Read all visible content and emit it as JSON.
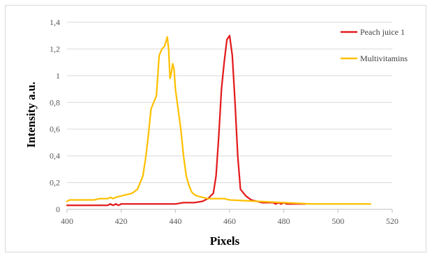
{
  "chart_data": {
    "type": "line",
    "title": "",
    "xlabel": "Pixels",
    "ylabel": "Intensity a.u.",
    "xlim": [
      400,
      520
    ],
    "ylim": [
      0,
      1.4
    ],
    "x_ticks": [
      400,
      420,
      440,
      460,
      480,
      500,
      520
    ],
    "x_tick_labels": [
      "400",
      "420",
      "440",
      "460",
      "480",
      "500",
      "520"
    ],
    "y_ticks": [
      0,
      0.2,
      0.4,
      0.6,
      0.8,
      1.0,
      1.2,
      1.4
    ],
    "y_tick_labels": [
      "0",
      "0,2",
      "0,4",
      "0,6",
      "0,8",
      "1",
      "1,2",
      "1,4"
    ],
    "grid": "horizontal",
    "legend_position": "top-right",
    "series": [
      {
        "name": "Peach juice 1",
        "color": "#e31a1c",
        "x": [
          400,
          410,
          415,
          416,
          417,
          418,
          419,
          420,
          430,
          440,
          443,
          447,
          450,
          452,
          454,
          455,
          456,
          457,
          458,
          459,
          460,
          461,
          462,
          463,
          464,
          466,
          468,
          470,
          472,
          476,
          477,
          478,
          479,
          480,
          481,
          482,
          485,
          488
        ],
        "y": [
          0.03,
          0.03,
          0.03,
          0.04,
          0.03,
          0.04,
          0.03,
          0.04,
          0.04,
          0.04,
          0.05,
          0.05,
          0.06,
          0.08,
          0.12,
          0.25,
          0.55,
          0.9,
          1.1,
          1.27,
          1.3,
          1.15,
          0.8,
          0.4,
          0.15,
          0.1,
          0.07,
          0.06,
          0.05,
          0.05,
          0.04,
          0.05,
          0.04,
          0.05,
          0.04,
          0.04,
          0.04,
          0.04
        ]
      },
      {
        "name": "Multivitamins",
        "color": "#ffc000",
        "x": [
          400,
          401,
          410,
          412,
          415,
          416,
          417,
          418,
          420,
          422,
          424,
          426,
          427,
          428,
          429,
          430,
          431,
          432,
          433,
          434,
          435,
          436,
          437,
          437.5,
          438,
          438.5,
          439,
          439.5,
          440,
          441,
          442,
          443,
          444,
          445,
          446,
          447,
          448,
          450,
          452,
          455,
          458,
          460,
          470,
          480,
          490,
          500,
          512
        ],
        "y": [
          0.06,
          0.07,
          0.07,
          0.08,
          0.08,
          0.09,
          0.08,
          0.09,
          0.1,
          0.11,
          0.12,
          0.15,
          0.2,
          0.25,
          0.38,
          0.55,
          0.75,
          0.8,
          0.85,
          1.15,
          1.2,
          1.22,
          1.29,
          1.2,
          0.98,
          1.02,
          1.09,
          1.05,
          0.9,
          0.75,
          0.6,
          0.4,
          0.25,
          0.18,
          0.13,
          0.11,
          0.1,
          0.09,
          0.08,
          0.08,
          0.08,
          0.07,
          0.06,
          0.05,
          0.04,
          0.04,
          0.04
        ]
      }
    ]
  }
}
